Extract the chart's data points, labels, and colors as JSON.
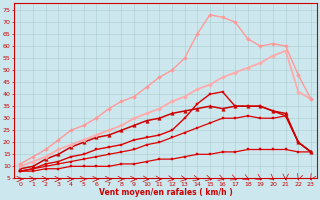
{
  "xlabel": "Vent moyen/en rafales ( km/h )",
  "xlabel_color": "#cc0000",
  "background_color": "#cce8ee",
  "grid_color": "#aacccc",
  "xlim": [
    -0.5,
    23.5
  ],
  "ylim": [
    5,
    78
  ],
  "yticks": [
    5,
    10,
    15,
    20,
    25,
    30,
    35,
    40,
    45,
    50,
    55,
    60,
    65,
    70,
    75
  ],
  "xticks": [
    0,
    1,
    2,
    3,
    4,
    5,
    6,
    7,
    8,
    9,
    10,
    11,
    12,
    13,
    14,
    15,
    16,
    17,
    18,
    19,
    20,
    21,
    22,
    23
  ],
  "lines": [
    {
      "x": [
        0,
        1,
        2,
        3,
        4,
        5,
        6,
        7,
        8,
        9,
        10,
        11,
        12,
        13,
        14,
        15,
        16,
        17,
        18,
        19,
        20,
        21,
        22,
        23
      ],
      "y": [
        8,
        8,
        9,
        9,
        10,
        10,
        10,
        10,
        11,
        11,
        12,
        13,
        13,
        14,
        15,
        15,
        16,
        16,
        17,
        17,
        17,
        17,
        16,
        16
      ],
      "color": "#dd0000",
      "linewidth": 0.9,
      "marker": "s",
      "markersize": 1.8
    },
    {
      "x": [
        0,
        1,
        2,
        3,
        4,
        5,
        6,
        7,
        8,
        9,
        10,
        11,
        12,
        13,
        14,
        15,
        16,
        17,
        18,
        19,
        20,
        21,
        22,
        23
      ],
      "y": [
        8,
        9,
        10,
        11,
        12,
        13,
        14,
        15,
        16,
        17,
        19,
        20,
        22,
        24,
        26,
        28,
        30,
        30,
        31,
        30,
        30,
        31,
        20,
        16
      ],
      "color": "#dd0000",
      "linewidth": 0.9,
      "marker": "s",
      "markersize": 1.8
    },
    {
      "x": [
        0,
        1,
        2,
        3,
        4,
        5,
        6,
        7,
        8,
        9,
        10,
        11,
        12,
        13,
        14,
        15,
        16,
        17,
        18,
        19,
        20,
        21,
        22,
        23
      ],
      "y": [
        8,
        9,
        11,
        12,
        14,
        15,
        17,
        18,
        19,
        21,
        22,
        23,
        25,
        30,
        36,
        40,
        41,
        35,
        35,
        35,
        33,
        31,
        20,
        16
      ],
      "color": "#dd0000",
      "linewidth": 1.0,
      "marker": "s",
      "markersize": 1.8
    },
    {
      "x": [
        0,
        1,
        2,
        3,
        4,
        5,
        6,
        7,
        8,
        9,
        10,
        11,
        12,
        13,
        14,
        15,
        16,
        17,
        18,
        19,
        20,
        21,
        22,
        23
      ],
      "y": [
        9,
        10,
        13,
        15,
        18,
        20,
        22,
        23,
        25,
        27,
        29,
        30,
        32,
        33,
        34,
        35,
        34,
        35,
        35,
        35,
        33,
        32,
        20,
        16
      ],
      "color": "#cc0000",
      "linewidth": 1.1,
      "marker": "^",
      "markersize": 2.5
    },
    {
      "x": [
        0,
        1,
        2,
        3,
        4,
        5,
        6,
        7,
        8,
        9,
        10,
        11,
        12,
        13,
        14,
        15,
        16,
        17,
        18,
        19,
        20,
        21,
        22,
        23
      ],
      "y": [
        10,
        12,
        14,
        17,
        19,
        21,
        23,
        25,
        27,
        30,
        32,
        34,
        37,
        39,
        42,
        44,
        47,
        49,
        51,
        53,
        56,
        58,
        41,
        38
      ],
      "color": "#ffaaaa",
      "linewidth": 1.3,
      "marker": "D",
      "markersize": 2.0
    },
    {
      "x": [
        0,
        1,
        2,
        3,
        4,
        5,
        6,
        7,
        8,
        9,
        10,
        11,
        12,
        13,
        14,
        15,
        16,
        17,
        18,
        19,
        20,
        21,
        22,
        23
      ],
      "y": [
        11,
        14,
        17,
        21,
        25,
        27,
        30,
        34,
        37,
        39,
        43,
        47,
        50,
        55,
        65,
        73,
        72,
        70,
        63,
        60,
        61,
        60,
        48,
        38
      ],
      "color": "#ff9999",
      "linewidth": 1.0,
      "marker": "D",
      "markersize": 2.0
    }
  ],
  "arrows": {
    "x": [
      0,
      1,
      2,
      3,
      4,
      5,
      6,
      7,
      8,
      9,
      10,
      11,
      12,
      13,
      14,
      15,
      16,
      17,
      18,
      19,
      20,
      21,
      22,
      23
    ],
    "y": 6.5,
    "color": "#cc0000",
    "angles": [
      180,
      180,
      180,
      180,
      180,
      180,
      180,
      180,
      180,
      180,
      170,
      170,
      160,
      160,
      150,
      145,
      140,
      135,
      130,
      125,
      120,
      90,
      80,
      75
    ]
  }
}
